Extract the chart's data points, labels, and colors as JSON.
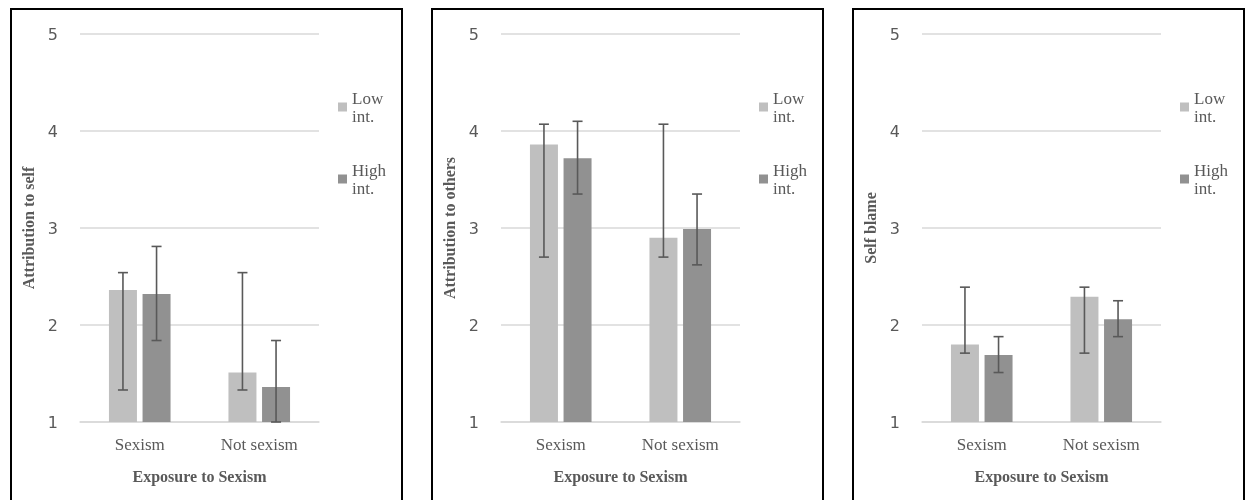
{
  "chart_data": [
    {
      "type": "bar",
      "xlabel": "Exposure to Sexism",
      "ylabel": "Attribution to self",
      "categories": [
        "Sexism",
        "Not sexism"
      ],
      "ylim": [
        1,
        5
      ],
      "yticks": [
        1,
        2,
        3,
        4,
        5
      ],
      "grid": "y",
      "legend": "right",
      "series": [
        {
          "name": "Low int.",
          "color": "#bfbfbf",
          "values": [
            2.36,
            1.51
          ],
          "errors": [
            [
              1.33,
              2.54
            ],
            [
              1.33,
              2.54
            ]
          ]
        },
        {
          "name": "High int.",
          "color": "#919191",
          "values": [
            2.32,
            1.36
          ],
          "errors": [
            [
              1.84,
              2.81
            ],
            [
              1.0,
              1.84
            ]
          ]
        }
      ]
    },
    {
      "type": "bar",
      "xlabel": "Exposure to Sexism",
      "ylabel": "Attribution to others",
      "categories": [
        "Sexism",
        "Not sexism"
      ],
      "ylim": [
        1,
        5
      ],
      "yticks": [
        1,
        2,
        3,
        4,
        5
      ],
      "grid": "y",
      "legend": "right",
      "series": [
        {
          "name": "Low int.",
          "color": "#bfbfbf",
          "values": [
            3.86,
            2.9
          ],
          "errors": [
            [
              2.7,
              4.07
            ],
            [
              2.7,
              4.07
            ]
          ]
        },
        {
          "name": "High int.",
          "color": "#919191",
          "values": [
            3.72,
            2.99
          ],
          "errors": [
            [
              3.35,
              4.1
            ],
            [
              2.62,
              3.35
            ]
          ]
        }
      ]
    },
    {
      "type": "bar",
      "xlabel": "Exposure to Sexism",
      "ylabel": "Self blame",
      "categories": [
        "Sexism",
        "Not sexism"
      ],
      "ylim": [
        1,
        5
      ],
      "yticks": [
        1,
        2,
        3,
        4,
        5
      ],
      "grid": "y",
      "legend": "right",
      "series": [
        {
          "name": "Low int.",
          "color": "#bfbfbf",
          "values": [
            1.8,
            2.29
          ],
          "errors": [
            [
              1.71,
              2.39
            ],
            [
              1.71,
              2.39
            ]
          ]
        },
        {
          "name": "High int.",
          "color": "#919191",
          "values": [
            1.69,
            2.06
          ],
          "errors": [
            [
              1.51,
              1.88
            ],
            [
              1.88,
              2.25
            ]
          ]
        }
      ]
    }
  ]
}
